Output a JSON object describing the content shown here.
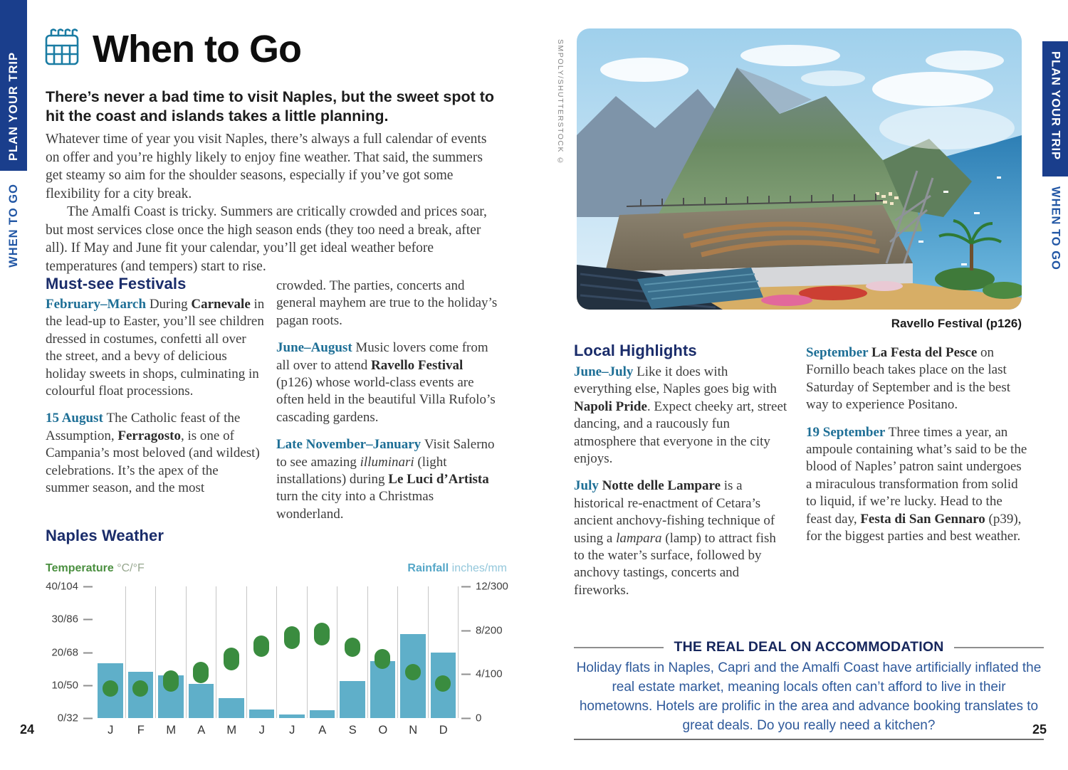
{
  "page": {
    "left_number": "24",
    "right_number": "25"
  },
  "sidebar": {
    "plan_your_trip": "PLAN YOUR TRIP",
    "when_to_go": "WHEN TO GO"
  },
  "header": {
    "title": "When to Go",
    "icon": "calendar-icon"
  },
  "intro": {
    "lead": "There’s never a bad time to visit Naples, but the sweet spot to hit the coast and islands takes a little planning.",
    "p1": "Whatever time of year you visit Naples, there’s always a full calendar of events on offer and you’re highly likely to enjoy fine weather. That said, the summers get steamy so aim for the shoulder seasons, especially if you’ve got some flexibility for a city break.",
    "p2": "The Amalfi Coast is tricky. Summers are critically crowded and prices soar, but most services close once the high season ends (they too need a break, after all). If May and June fit your calendar, you’ll get ideal weather before temperatures (and tempers) start to rise."
  },
  "festivals": {
    "heading": "Must-see Festivals",
    "col1": [
      {
        "label": "February–March",
        "segments": [
          {
            "t": "During "
          },
          {
            "t": "Carnevale",
            "b": true
          },
          {
            "t": " in the lead-up to Easter, you’ll see children dressed in costumes, confetti all over the street, and a bevy of delicious holiday sweets in shops, culminating in colourful float processions."
          }
        ]
      },
      {
        "label": "15 August",
        "segments": [
          {
            "t": "The Catholic feast of the Assumption, "
          },
          {
            "t": "Ferragosto",
            "b": true
          },
          {
            "t": ", is one of Campania’s most beloved (and wildest) celebrations. It’s the apex of the summer season, and the most"
          }
        ]
      }
    ],
    "col2": [
      {
        "label": "",
        "segments": [
          {
            "t": "crowded. The parties, concerts and general mayhem are true to the holiday’s pagan roots."
          }
        ]
      },
      {
        "label": "June–August",
        "segments": [
          {
            "t": "Music lovers come from all over to attend "
          },
          {
            "t": "Ravello Festival",
            "b": true
          },
          {
            "t": " (p126) whose world-class events are often held in the beautiful Villa Rufolo’s cascading gardens."
          }
        ]
      },
      {
        "label": "Late November–January",
        "segments": [
          {
            "t": "Visit Salerno to see amazing "
          },
          {
            "t": "illuminari",
            "i": true
          },
          {
            "t": " (light installations) during "
          },
          {
            "t": "Le Luci d’Artista",
            "b": true
          },
          {
            "t": " turn the city into a Christmas wonderland."
          }
        ]
      }
    ]
  },
  "photo": {
    "caption": "Ravello Festival (p126)",
    "credit": "SMPOLY/SHUTTERSTOCK ©"
  },
  "highlights": {
    "heading": "Local Highlights",
    "col1": [
      {
        "label": "June–July",
        "segments": [
          {
            "t": "Like it does with everything else, Naples goes big with "
          },
          {
            "t": "Napoli Pride",
            "b": true
          },
          {
            "t": ". Expect cheeky art, street dancing, and a raucously fun atmosphere that everyone in the city enjoys."
          }
        ]
      },
      {
        "label": "July",
        "segments": [
          {
            "t": "Notte delle Lampare",
            "b": true
          },
          {
            "t": " is a historical re-enactment of Cetara’s ancient anchovy-fishing technique of using a "
          },
          {
            "t": "lampara",
            "i": true
          },
          {
            "t": " (lamp) to attract fish to the water’s surface, followed by anchovy tastings, concerts and fireworks."
          }
        ]
      }
    ],
    "col2": [
      {
        "label": "September",
        "segments": [
          {
            "t": "La Festa del Pesce",
            "b": true
          },
          {
            "t": " on Fornillo beach takes place on the last Saturday of September and is the best way to experience Positano."
          }
        ]
      },
      {
        "label": "19 September",
        "segments": [
          {
            "t": "Three times a year, an ampoule containing what’s said to be the blood of Naples’ patron saint undergoes a miraculous transformation from solid to liquid, if we’re lucky. Head to the feast day, "
          },
          {
            "t": "Festa di San Gennaro",
            "b": true
          },
          {
            "t": " (p39), for the biggest parties and best weather."
          }
        ]
      }
    ]
  },
  "real_deal": {
    "title": "THE REAL DEAL ON ACCOMMODATION",
    "body": "Holiday flats in Naples, Capri and the Amalfi Coast have artificially inflated the real estate market, meaning locals often can’t afford to live in their hometowns. Hotels are prolific in the area and advance booking translates to great deals. Do you really need a kitchen?"
  },
  "chart_data": {
    "type": "bar",
    "title": "Naples Weather",
    "temperature_label": "Temperature",
    "temperature_unit": "°C/°F",
    "rainfall_label": "Rainfall",
    "rainfall_unit": "inches/mm",
    "months": [
      "J",
      "F",
      "M",
      "A",
      "M",
      "J",
      "J",
      "A",
      "S",
      "O",
      "N",
      "D"
    ],
    "rainfall_mm": [
      125,
      105,
      97,
      78,
      46,
      19,
      8,
      18,
      84,
      130,
      192,
      150
    ],
    "temp_low_c": [
      6.5,
      6.5,
      8,
      10.5,
      14.5,
      18.5,
      21,
      22,
      18.5,
      15,
      11.5,
      8
    ],
    "temp_high_c": [
      11.5,
      11.5,
      14.5,
      17,
      21.5,
      25,
      28,
      29,
      24.5,
      21,
      16.5,
      13
    ],
    "left_ticks": [
      "40/104",
      "30/86",
      "20/68",
      "10/50",
      "0/32"
    ],
    "right_ticks": [
      "12/300",
      "8/200",
      "4/100",
      "0"
    ],
    "temp_axis_max_c": 40,
    "rain_axis_max_mm": 300,
    "grid": "vertical month separators",
    "legend_position": "above-axes"
  },
  "colors": {
    "navy_bar": "#1a3e8c",
    "sidebar_text": "#2257a5",
    "heading_navy": "#1a2c6a",
    "label_teal": "#1e6f96",
    "bar_blue": "#5fafc9",
    "marker_green": "#3a8c3f",
    "real_deal_text": "#2f5a9b",
    "temp_green": "#4a8f3f",
    "rain_blue": "#56a7c8"
  },
  "icons": {
    "header_icon": "calendar-icon"
  }
}
